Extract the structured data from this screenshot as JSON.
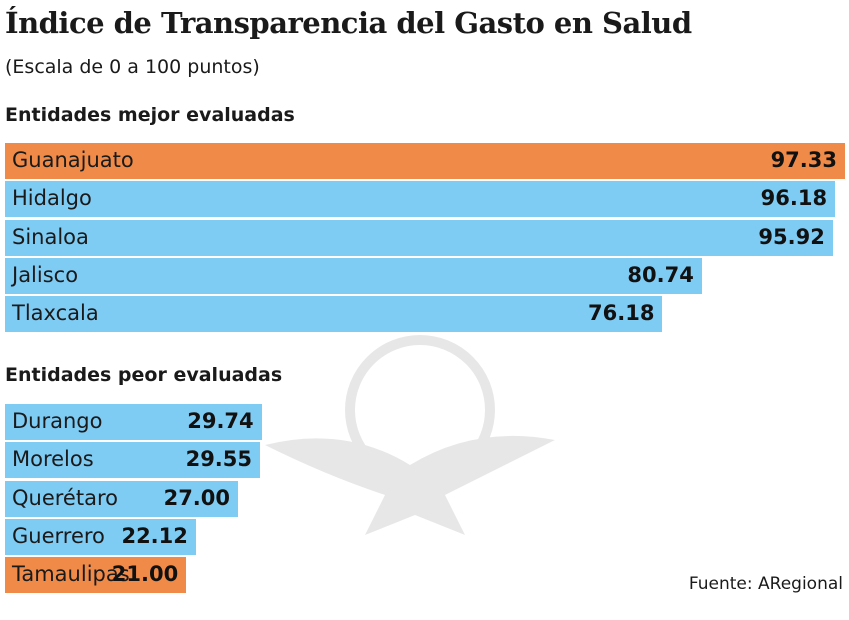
{
  "chart_data": {
    "type": "bar",
    "orientation": "horizontal",
    "title": "Índice de Transparencia del Gasto en Salud",
    "subtitle": "(Escala de 0 a 100 puntos)",
    "xlim": [
      0,
      100
    ],
    "groups": [
      {
        "heading": "Entidades mejor evaluadas",
        "categories": [
          "Guanajuato",
          "Hidalgo",
          "Sinaloa",
          "Jalisco",
          "Tlaxcala"
        ],
        "values": [
          97.33,
          96.18,
          95.92,
          80.74,
          76.18
        ],
        "labels": [
          "97.33",
          "96.18",
          "95.92",
          "80.74",
          "76.18"
        ],
        "highlight": [
          true,
          false,
          false,
          false,
          false
        ]
      },
      {
        "heading": "Entidades peor evaluadas",
        "categories": [
          "Durango",
          "Morelos",
          "Querétaro",
          "Guerrero",
          "Tamaulipas"
        ],
        "values": [
          29.74,
          29.55,
          27.0,
          22.12,
          21.0
        ],
        "labels": [
          "29.74",
          "29.55",
          "27.00",
          "22.12",
          "21.00"
        ],
        "highlight": [
          false,
          false,
          false,
          false,
          true
        ]
      }
    ],
    "colors": {
      "default": "#7ECBF3",
      "highlight": "#F08A48"
    },
    "source": "Fuente: ARegional"
  }
}
